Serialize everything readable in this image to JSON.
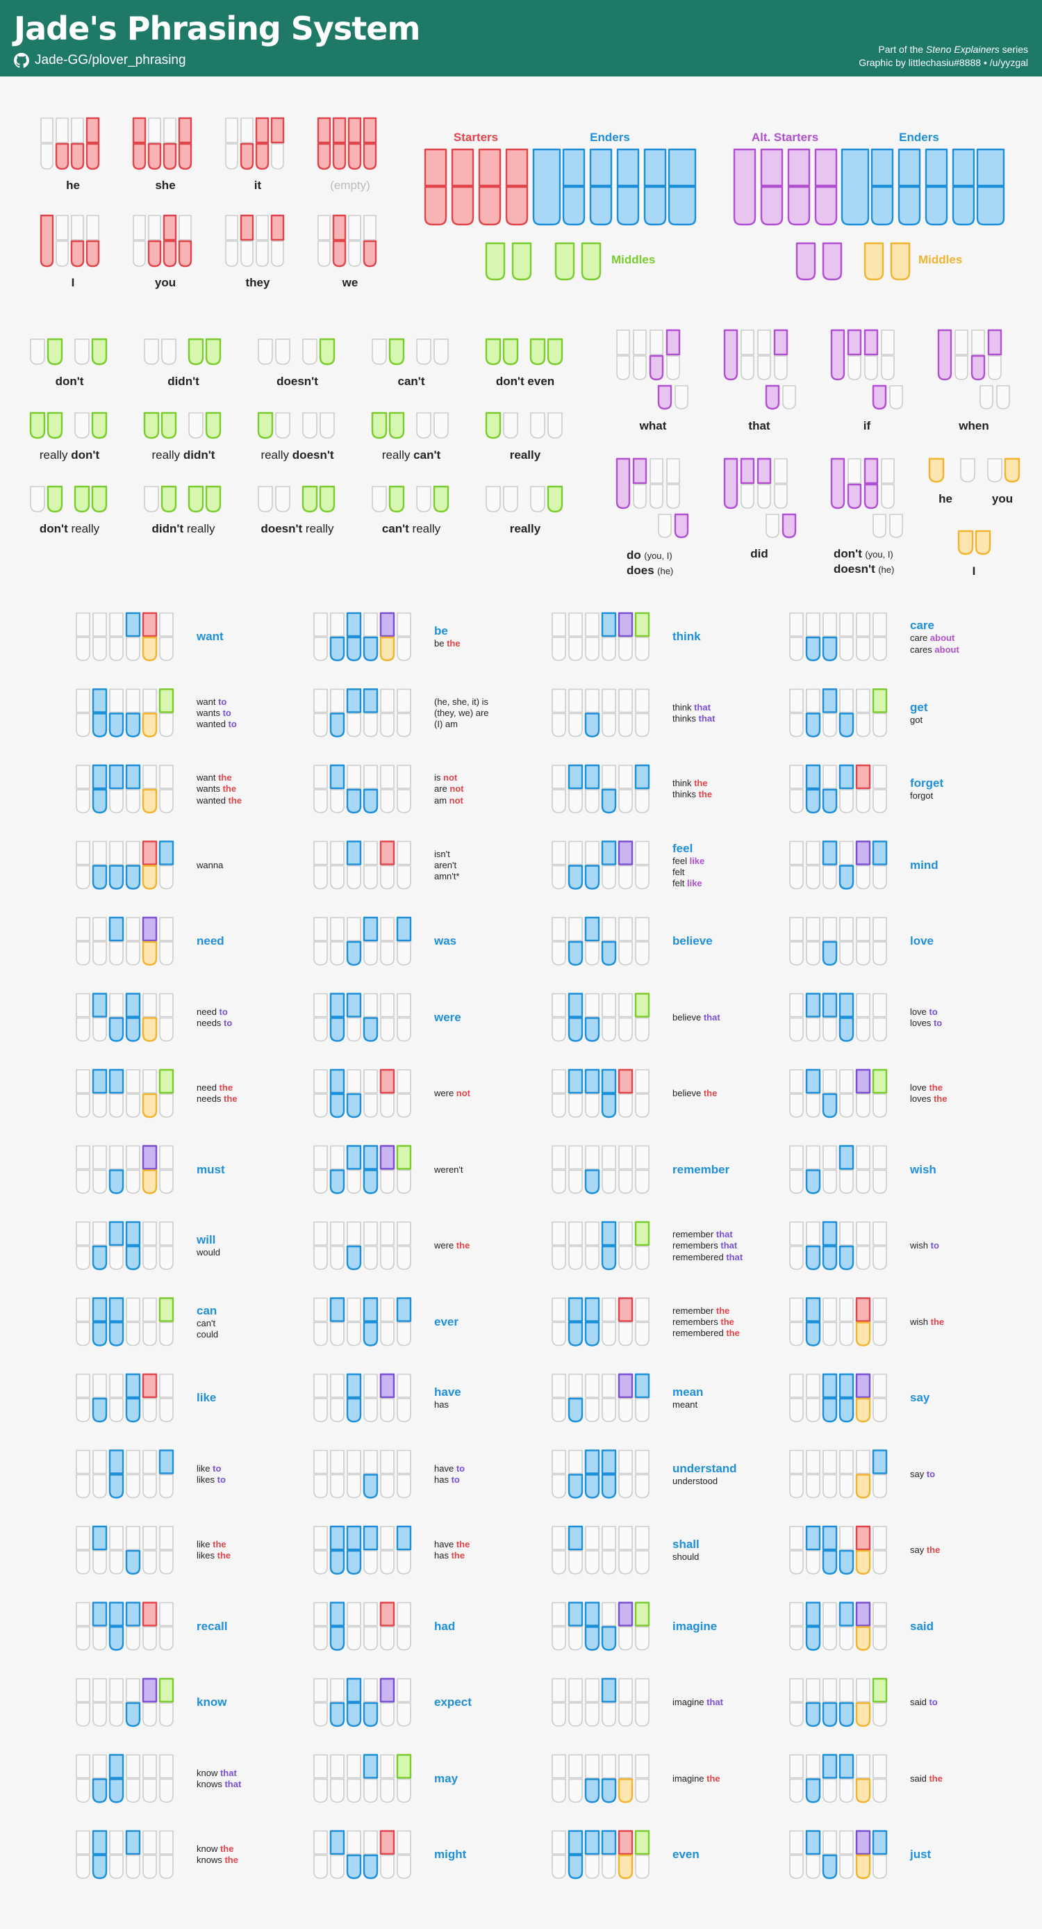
{
  "header": {
    "title": "Jade's Phrasing System",
    "repo": "Jade-GG/plover_phrasing",
    "credit_line1_pre": "Part of the ",
    "credit_line1_em": "Steno Explainers",
    "credit_line1_post": " series",
    "credit_line2": "Graphic by littlechasiu#8888 • /u/yyzgal"
  },
  "colors": {
    "red": "#e0454c",
    "red_fill": "#f8b4b4",
    "blue": "#1d8fd8",
    "blue_fill": "#a9d8f7",
    "green": "#7acc2e",
    "green_fill": "#d7f7b0",
    "purple": "#b14fd1",
    "purple_fill": "#e8c4f0",
    "violet": "#7b4fd1",
    "violet_fill": "#c9b5f2",
    "yellow": "#f2b330",
    "yellow_fill": "#fde6b0",
    "grey": "#cccccc"
  },
  "legend": {
    "starters": "Starters",
    "enders": "Enders",
    "middles": "Middles",
    "alt_starters": "Alt. Starters",
    "alt_enders": "Enders",
    "alt_middles": "Middles"
  },
  "pronouns": [
    "he",
    "she",
    "it",
    "(empty)",
    "I",
    "you",
    "they",
    "we"
  ],
  "modifiers": [
    [
      "don't",
      "didn't",
      "doesn't",
      "can't",
      "don't even"
    ],
    [
      "really don't",
      "really didn't",
      "really doesn't",
      "really can't",
      "really"
    ],
    [
      "don't really",
      "didn't really",
      "doesn't really",
      "can't really",
      "really"
    ]
  ],
  "alt_structures": {
    "what": "what",
    "that": "that",
    "if": "if",
    "when": "when",
    "do_line1": "do",
    "do_line1_sub": "(you, I)",
    "do_line2": "does",
    "do_line2_sub": "(he)",
    "did": "did",
    "dont_line1": "don't",
    "dont_line1_sub": "(you, I)",
    "dont_line2": "doesn't",
    "dont_line2_sub": "(he)",
    "he": "he",
    "you": "you",
    "i": "I"
  },
  "verbs": [
    [
      [
        "want"
      ],
      [
        "want to",
        "wants to",
        "wanted to"
      ],
      [
        "want the",
        "wants the",
        "wanted the"
      ],
      [
        "wanna"
      ],
      [
        "need"
      ],
      [
        "need to",
        "needs to"
      ],
      [
        "need the",
        "needs the"
      ],
      [
        "must"
      ],
      [
        "will",
        "would"
      ],
      [
        "can",
        "can't",
        "could"
      ],
      [
        "like"
      ],
      [
        "like to",
        "likes to"
      ],
      [
        "like the",
        "likes the"
      ],
      [
        "recall"
      ],
      [
        "know"
      ],
      [
        "know that",
        "knows that"
      ],
      [
        "know the",
        "knows the"
      ]
    ],
    [
      [
        "be",
        "be the"
      ],
      [
        "(he, she, it) is",
        "(they, we) are",
        "(I) am"
      ],
      [
        "is not",
        "are not",
        "am not"
      ],
      [
        "isn't",
        "aren't",
        "amn't*"
      ],
      [
        "was"
      ],
      [
        "were"
      ],
      [
        "were not"
      ],
      [
        "weren't"
      ],
      [
        "were the"
      ],
      [
        "ever"
      ],
      [
        "have",
        "has"
      ],
      [
        "have to",
        "has to"
      ],
      [
        "have the",
        "has the"
      ],
      [
        "had"
      ],
      [
        "expect"
      ],
      [
        "may"
      ],
      [
        "might"
      ]
    ],
    [
      [
        "think"
      ],
      [
        "think that",
        "thinks that"
      ],
      [
        "think the",
        "thinks the"
      ],
      [
        "feel",
        "feel like",
        "felt",
        "felt like"
      ],
      [
        "believe"
      ],
      [
        "believe that"
      ],
      [
        "believe the"
      ],
      [
        "remember"
      ],
      [
        "remember that",
        "remembers that",
        "remembered that"
      ],
      [
        "remember the",
        "remembers the",
        "remembered the"
      ],
      [
        "mean",
        "meant"
      ],
      [
        "understand",
        "understood"
      ],
      [
        "shall",
        "should"
      ],
      [
        "imagine"
      ],
      [
        "imagine that"
      ],
      [
        "imagine the"
      ],
      [
        "even"
      ]
    ],
    [
      [
        "care",
        "care about",
        "cares about"
      ],
      [
        "get",
        "got"
      ],
      [
        "forget",
        "forgot"
      ],
      [
        "mind"
      ],
      [
        "love"
      ],
      [
        "love to",
        "loves to"
      ],
      [
        "love the",
        "loves the"
      ],
      [
        "wish"
      ],
      [
        "wish to"
      ],
      [
        "wish the"
      ],
      [
        "say"
      ],
      [
        "say to"
      ],
      [
        "say the"
      ],
      [
        "said"
      ],
      [
        "said to"
      ],
      [
        "said the"
      ],
      [
        "just"
      ]
    ]
  ]
}
